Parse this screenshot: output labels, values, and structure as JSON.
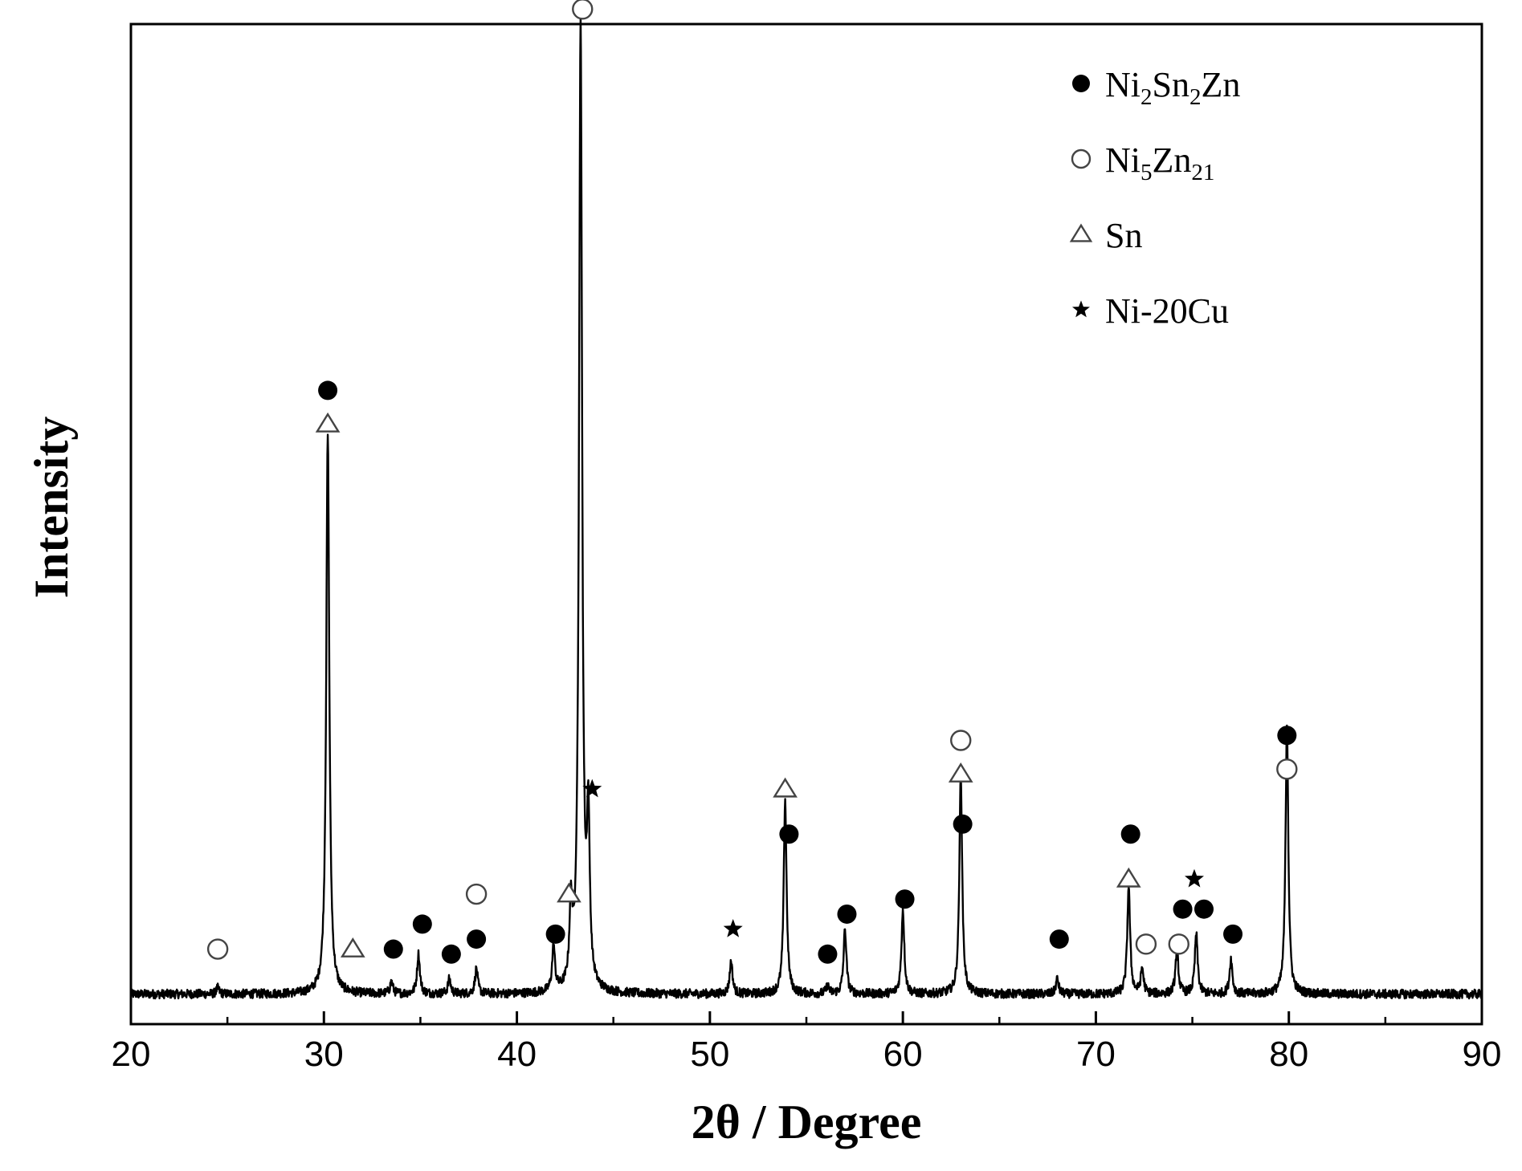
{
  "chart_data": {
    "type": "line",
    "title": "",
    "xlabel": "2θ / Degree",
    "ylabel": "Intensity",
    "xlim": [
      20,
      90
    ],
    "ylim": [
      0,
      100
    ],
    "xticks": [
      20,
      30,
      40,
      50,
      60,
      70,
      80,
      90
    ],
    "y_ticks_shown": false,
    "grid": false,
    "legend_position": "top-right",
    "colors": {
      "line": "#000000",
      "frame": "#000000"
    },
    "legend": [
      {
        "marker": "filled-circle",
        "label": "Ni2Sn2Zn",
        "parts": [
          [
            "Ni",
            ""
          ],
          [
            "2",
            "sub"
          ],
          [
            "Sn",
            ""
          ],
          [
            "2",
            "sub"
          ],
          [
            "Zn",
            ""
          ]
        ]
      },
      {
        "marker": "open-circle",
        "label": "Ni5Zn21",
        "parts": [
          [
            "Ni",
            ""
          ],
          [
            "5",
            "sub"
          ],
          [
            "Zn",
            ""
          ],
          [
            "21",
            "sub"
          ]
        ]
      },
      {
        "marker": "open-triangle",
        "label": "Sn",
        "parts": [
          [
            "Sn",
            ""
          ]
        ]
      },
      {
        "marker": "star",
        "label": "Ni-20Cu",
        "parts": [
          [
            "Ni-20Cu",
            ""
          ]
        ]
      }
    ],
    "baseline": 3.0,
    "peaks": [
      {
        "x": 24.5,
        "y": 3.6
      },
      {
        "x": 30.2,
        "y": 59.0
      },
      {
        "x": 33.5,
        "y": 4.2
      },
      {
        "x": 34.9,
        "y": 7.0
      },
      {
        "x": 36.5,
        "y": 4.5
      },
      {
        "x": 37.9,
        "y": 5.5
      },
      {
        "x": 41.9,
        "y": 7.5
      },
      {
        "x": 42.8,
        "y": 10.5
      },
      {
        "x": 43.3,
        "y": 100.0
      },
      {
        "x": 43.7,
        "y": 19.0
      },
      {
        "x": 51.1,
        "y": 6.3
      },
      {
        "x": 53.9,
        "y": 22.5
      },
      {
        "x": 56.1,
        "y": 3.8
      },
      {
        "x": 57.0,
        "y": 9.5
      },
      {
        "x": 60.0,
        "y": 11.5
      },
      {
        "x": 63.0,
        "y": 25.0
      },
      {
        "x": 68.0,
        "y": 4.5
      },
      {
        "x": 71.7,
        "y": 13.8
      },
      {
        "x": 72.4,
        "y": 5.5
      },
      {
        "x": 74.2,
        "y": 7.5
      },
      {
        "x": 75.2,
        "y": 9.0
      },
      {
        "x": 77.0,
        "y": 6.5
      },
      {
        "x": 79.9,
        "y": 30.0
      }
    ],
    "annotations": [
      {
        "x": 24.5,
        "y": 7.5,
        "markers": [
          "open-circle"
        ]
      },
      {
        "x": 30.2,
        "y": 60.0,
        "markers": [
          "open-triangle",
          "filled-circle"
        ]
      },
      {
        "x": 31.5,
        "y": 7.5,
        "markers": [
          "open-triangle"
        ]
      },
      {
        "x": 33.6,
        "y": 7.5,
        "markers": [
          "filled-circle"
        ]
      },
      {
        "x": 35.1,
        "y": 10.0,
        "markers": [
          "filled-circle"
        ]
      },
      {
        "x": 36.6,
        "y": 7.0,
        "markers": [
          "filled-circle"
        ]
      },
      {
        "x": 37.9,
        "y": 8.5,
        "markers": [
          "filled-circle"
        ]
      },
      {
        "x": 37.9,
        "y": 13.0,
        "markers": [
          "open-circle"
        ]
      },
      {
        "x": 42.0,
        "y": 9.0,
        "markers": [
          "filled-circle"
        ]
      },
      {
        "x": 42.7,
        "y": 13.0,
        "markers": [
          "open-triangle"
        ]
      },
      {
        "x": 43.4,
        "y": 101.5,
        "markers": [
          "open-circle",
          "filled-circle"
        ]
      },
      {
        "x": 43.9,
        "y": 23.5,
        "markers": [
          "star"
        ]
      },
      {
        "x": 51.2,
        "y": 9.5,
        "markers": [
          "star"
        ]
      },
      {
        "x": 53.9,
        "y": 23.5,
        "markers": [
          "open-triangle"
        ]
      },
      {
        "x": 54.1,
        "y": 19.0,
        "markers": [
          "filled-circle"
        ]
      },
      {
        "x": 56.1,
        "y": 7.0,
        "markers": [
          "filled-circle"
        ]
      },
      {
        "x": 57.1,
        "y": 11.0,
        "markers": [
          "filled-circle"
        ]
      },
      {
        "x": 60.1,
        "y": 12.5,
        "markers": [
          "filled-circle"
        ]
      },
      {
        "x": 63.0,
        "y": 25.0,
        "markers": [
          "open-triangle",
          "open-circle"
        ]
      },
      {
        "x": 63.1,
        "y": 20.0,
        "markers": [
          "filled-circle"
        ]
      },
      {
        "x": 68.1,
        "y": 8.5,
        "markers": [
          "filled-circle"
        ]
      },
      {
        "x": 71.7,
        "y": 14.5,
        "markers": [
          "open-triangle"
        ]
      },
      {
        "x": 71.8,
        "y": 19.0,
        "markers": [
          "filled-circle"
        ]
      },
      {
        "x": 72.6,
        "y": 8.0,
        "markers": [
          "open-circle"
        ]
      },
      {
        "x": 74.3,
        "y": 8.0,
        "markers": [
          "open-circle"
        ]
      },
      {
        "x": 74.5,
        "y": 11.5,
        "markers": [
          "filled-circle"
        ]
      },
      {
        "x": 75.1,
        "y": 14.5,
        "markers": [
          "star"
        ]
      },
      {
        "x": 75.6,
        "y": 11.5,
        "markers": [
          "filled-circle"
        ]
      },
      {
        "x": 77.1,
        "y": 9.0,
        "markers": [
          "filled-circle"
        ]
      },
      {
        "x": 79.9,
        "y": 25.5,
        "markers": [
          "open-circle",
          "filled-circle"
        ]
      }
    ]
  }
}
